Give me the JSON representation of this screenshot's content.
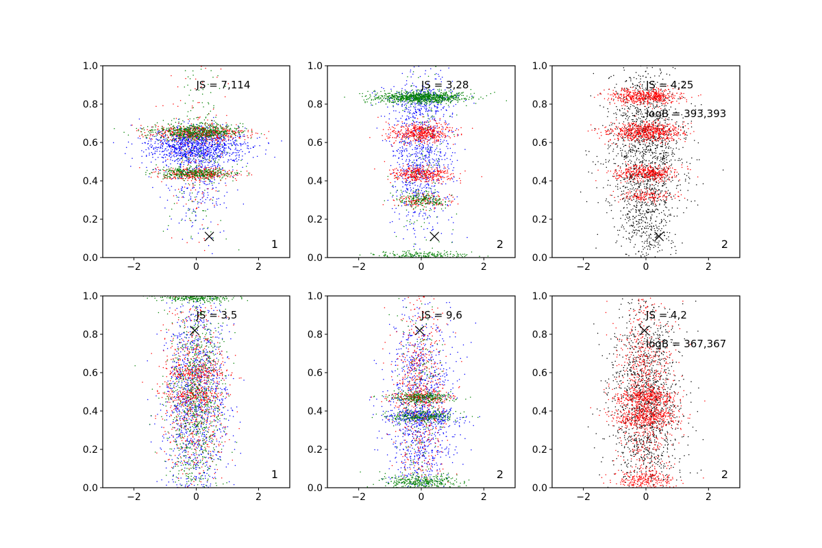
{
  "chart_data": [
    {
      "type": "scatter",
      "xlim": [
        -3,
        3
      ],
      "ylim": [
        0,
        1
      ],
      "xticks": [
        -2,
        0,
        2
      ],
      "yticks": [
        0.0,
        0.2,
        0.4,
        0.6,
        0.8,
        1.0
      ],
      "xtick_labels": [
        "−2",
        "0",
        "2"
      ],
      "ytick_labels": [
        "0.0",
        "0.2",
        "0.4",
        "0.6",
        "0.8",
        "1.0"
      ],
      "annotations": [
        {
          "text": "JS = 7,114",
          "x": 0.0,
          "y": 0.9
        }
      ],
      "corner_label": "1",
      "marker": {
        "symbol": "x",
        "x": 0.42,
        "y": 0.11
      },
      "series": [
        {
          "color": "#0000ff",
          "clusters": [
            {
              "cy": 0.58,
              "sy": 0.05,
              "sx": 0.8,
              "n": 1100
            },
            {
              "cy": 0.42,
              "sy": 0.15,
              "sx": 0.5,
              "n": 300
            }
          ]
        },
        {
          "color": "#ff0000",
          "clusters": [
            {
              "cy": 0.65,
              "sy": 0.02,
              "sx": 0.75,
              "n": 500
            },
            {
              "cy": 0.435,
              "sy": 0.015,
              "sx": 0.65,
              "n": 320
            },
            {
              "cy": 0.5,
              "sy": 0.25,
              "sx": 0.5,
              "n": 150
            }
          ]
        },
        {
          "color": "#008000",
          "clusters": [
            {
              "cy": 0.655,
              "sy": 0.02,
              "sx": 0.75,
              "n": 550
            },
            {
              "cy": 0.44,
              "sy": 0.015,
              "sx": 0.65,
              "n": 340
            },
            {
              "cy": 0.55,
              "sy": 0.25,
              "sx": 0.5,
              "n": 200
            }
          ]
        }
      ]
    },
    {
      "type": "scatter",
      "xlim": [
        -3,
        3
      ],
      "ylim": [
        0,
        1
      ],
      "xticks": [
        -2,
        0,
        2
      ],
      "yticks": [
        0.0,
        0.2,
        0.4,
        0.6,
        0.8,
        1.0
      ],
      "xtick_labels": [
        "−2",
        "0",
        "2"
      ],
      "ytick_labels": [
        "0.0",
        "0.2",
        "0.4",
        "0.6",
        "0.8",
        "1.0"
      ],
      "annotations": [
        {
          "text": "JS = 3,28",
          "x": 0.0,
          "y": 0.9
        }
      ],
      "corner_label": "2",
      "marker": {
        "symbol": "x",
        "x": 0.42,
        "y": 0.11
      },
      "series": [
        {
          "color": "#0000ff",
          "clusters": [
            {
              "cy": 0.55,
              "sy": 0.2,
              "sx": 0.5,
              "n": 900
            },
            {
              "cy": 0.83,
              "sy": 0.03,
              "sx": 0.6,
              "n": 200
            }
          ]
        },
        {
          "color": "#ff0000",
          "clusters": [
            {
              "cy": 0.65,
              "sy": 0.025,
              "sx": 0.5,
              "n": 500
            },
            {
              "cy": 0.435,
              "sy": 0.02,
              "sx": 0.5,
              "n": 380
            },
            {
              "cy": 0.3,
              "sy": 0.02,
              "sx": 0.45,
              "n": 150
            }
          ]
        },
        {
          "color": "#008000",
          "clusters": [
            {
              "cy": 0.835,
              "sy": 0.015,
              "sx": 0.75,
              "n": 900
            },
            {
              "cy": 0.3,
              "sy": 0.02,
              "sx": 0.45,
              "n": 180
            },
            {
              "cy": 0.01,
              "sy": 0.01,
              "sx": 0.7,
              "n": 220
            },
            {
              "cy": 0.5,
              "sy": 0.3,
              "sx": 0.4,
              "n": 150
            }
          ]
        }
      ]
    },
    {
      "type": "scatter",
      "xlim": [
        -3,
        3
      ],
      "ylim": [
        0,
        1
      ],
      "xticks": [
        -2,
        0,
        2
      ],
      "yticks": [
        0.0,
        0.2,
        0.4,
        0.6,
        0.8,
        1.0
      ],
      "xtick_labels": [
        "−2",
        "0",
        "2"
      ],
      "ytick_labels": [
        "0.0",
        "0.2",
        "0.4",
        "0.6",
        "0.8",
        "1.0"
      ],
      "annotations": [
        {
          "text": "JS = 4,25",
          "x": 0.0,
          "y": 0.9
        },
        {
          "text": "logB = 393,393",
          "x": 0.0,
          "y": 0.75
        }
      ],
      "corner_label": "2",
      "marker": {
        "symbol": "x",
        "x": 0.42,
        "y": 0.11
      },
      "series": [
        {
          "color": "#000000",
          "clusters": [
            {
              "cy": 0.55,
              "sy": 0.22,
              "sx": 0.6,
              "n": 1400
            },
            {
              "cy": 0.15,
              "sy": 0.1,
              "sx": 0.4,
              "n": 250
            }
          ]
        },
        {
          "color": "#ff0000",
          "clusters": [
            {
              "cy": 0.84,
              "sy": 0.02,
              "sx": 0.55,
              "n": 550
            },
            {
              "cy": 0.655,
              "sy": 0.025,
              "sx": 0.6,
              "n": 650
            },
            {
              "cy": 0.44,
              "sy": 0.02,
              "sx": 0.5,
              "n": 420
            },
            {
              "cy": 0.32,
              "sy": 0.015,
              "sx": 0.45,
              "n": 150
            }
          ]
        }
      ]
    },
    {
      "type": "scatter",
      "xlim": [
        -3,
        3
      ],
      "ylim": [
        0,
        1
      ],
      "xticks": [
        -2,
        0,
        2
      ],
      "yticks": [
        0.0,
        0.2,
        0.4,
        0.6,
        0.8,
        1.0
      ],
      "xtick_labels": [
        "−2",
        "0",
        "2"
      ],
      "ytick_labels": [
        "0.0",
        "0.2",
        "0.4",
        "0.6",
        "0.8",
        "1.0"
      ],
      "annotations": [
        {
          "text": "JS = 3,5",
          "x": 0.0,
          "y": 0.9
        }
      ],
      "corner_label": "1",
      "marker": {
        "symbol": "x",
        "x": -0.05,
        "y": 0.82
      },
      "series": [
        {
          "color": "#0000ff",
          "clusters": [
            {
              "cy": 0.45,
              "sy": 0.28,
              "sx": 0.5,
              "n": 1200
            }
          ]
        },
        {
          "color": "#ff0000",
          "clusters": [
            {
              "cy": 0.5,
              "sy": 0.25,
              "sx": 0.5,
              "n": 700
            },
            {
              "cy": 0.6,
              "sy": 0.02,
              "sx": 0.45,
              "n": 150
            },
            {
              "cy": 0.48,
              "sy": 0.02,
              "sx": 0.45,
              "n": 150
            }
          ]
        },
        {
          "color": "#008000",
          "clusters": [
            {
              "cy": 0.45,
              "sy": 0.27,
              "sx": 0.45,
              "n": 900
            },
            {
              "cy": 0.99,
              "sy": 0.01,
              "sx": 0.6,
              "n": 250
            }
          ]
        }
      ]
    },
    {
      "type": "scatter",
      "xlim": [
        -3,
        3
      ],
      "ylim": [
        0,
        1
      ],
      "xticks": [
        -2,
        0,
        2
      ],
      "yticks": [
        0.0,
        0.2,
        0.4,
        0.6,
        0.8,
        1.0
      ],
      "xtick_labels": [
        "−2",
        "0",
        "2"
      ],
      "ytick_labels": [
        "0.0",
        "0.2",
        "0.4",
        "0.6",
        "0.8",
        "1.0"
      ],
      "annotations": [
        {
          "text": "JS = 9,6",
          "x": 0.0,
          "y": 0.9
        }
      ],
      "corner_label": "2",
      "marker": {
        "symbol": "x",
        "x": -0.05,
        "y": 0.82
      },
      "series": [
        {
          "color": "#0000ff",
          "clusters": [
            {
              "cy": 0.42,
              "sy": 0.25,
              "sx": 0.55,
              "n": 1100
            },
            {
              "cy": 0.37,
              "sy": 0.02,
              "sx": 0.6,
              "n": 250
            }
          ]
        },
        {
          "color": "#ff0000",
          "clusters": [
            {
              "cy": 0.5,
              "sy": 0.28,
              "sx": 0.4,
              "n": 600
            },
            {
              "cy": 0.47,
              "sy": 0.015,
              "sx": 0.5,
              "n": 180
            }
          ]
        },
        {
          "color": "#008000",
          "clusters": [
            {
              "cy": 0.47,
              "sy": 0.015,
              "sx": 0.55,
              "n": 250
            },
            {
              "cy": 0.37,
              "sy": 0.015,
              "sx": 0.55,
              "n": 250
            },
            {
              "cy": 0.03,
              "sy": 0.02,
              "sx": 0.6,
              "n": 350
            },
            {
              "cy": 0.5,
              "sy": 0.3,
              "sx": 0.4,
              "n": 200
            }
          ]
        }
      ]
    },
    {
      "type": "scatter",
      "xlim": [
        -3,
        3
      ],
      "ylim": [
        0,
        1
      ],
      "xticks": [
        -2,
        0,
        2
      ],
      "yticks": [
        0.0,
        0.2,
        0.4,
        0.6,
        0.8,
        1.0
      ],
      "xtick_labels": [
        "−2",
        "0",
        "2"
      ],
      "ytick_labels": [
        "0.0",
        "0.2",
        "0.4",
        "0.6",
        "0.8",
        "1.0"
      ],
      "annotations": [
        {
          "text": "JS = 4,2",
          "x": 0.0,
          "y": 0.9
        },
        {
          "text": "logB = 367,367",
          "x": 0.0,
          "y": 0.75
        }
      ],
      "corner_label": "2",
      "marker": {
        "symbol": "x",
        "x": -0.05,
        "y": 0.82
      },
      "series": [
        {
          "color": "#000000",
          "clusters": [
            {
              "cy": 0.45,
              "sy": 0.28,
              "sx": 0.55,
              "n": 1400
            }
          ]
        },
        {
          "color": "#ff0000",
          "clusters": [
            {
              "cy": 0.5,
              "sy": 0.28,
              "sx": 0.45,
              "n": 800
            },
            {
              "cy": 0.47,
              "sy": 0.025,
              "sx": 0.5,
              "n": 350
            },
            {
              "cy": 0.37,
              "sy": 0.025,
              "sx": 0.5,
              "n": 350
            },
            {
              "cy": 0.04,
              "sy": 0.03,
              "sx": 0.5,
              "n": 250
            }
          ]
        }
      ]
    }
  ]
}
